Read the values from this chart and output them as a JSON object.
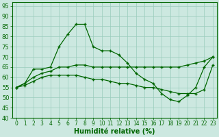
{
  "background_color": "#cce8e0",
  "grid_color": "#99ccbb",
  "line_color": "#006600",
  "xlabel": "Humidité relative (%)",
  "xlabel_fontsize": 7,
  "xlim": [
    -0.5,
    23.5
  ],
  "ylim": [
    40,
    97
  ],
  "yticks": [
    40,
    45,
    50,
    55,
    60,
    65,
    70,
    75,
    80,
    85,
    90,
    95
  ],
  "xticks": [
    0,
    1,
    2,
    3,
    4,
    5,
    6,
    7,
    8,
    9,
    10,
    11,
    12,
    13,
    14,
    15,
    16,
    17,
    18,
    19,
    20,
    21,
    22,
    23
  ],
  "series1_x": [
    0,
    1,
    2,
    3,
    4,
    5,
    6,
    7,
    8,
    9,
    10,
    11,
    12,
    13,
    14,
    15,
    16,
    17,
    18,
    19,
    20,
    21,
    22,
    23
  ],
  "series1_y": [
    55,
    57,
    64,
    64,
    65,
    75,
    81,
    86,
    86,
    75,
    73,
    73,
    71,
    67,
    62,
    59,
    57,
    52,
    49,
    48,
    51,
    55,
    65,
    70
  ],
  "series2_x": [
    0,
    1,
    2,
    3,
    4,
    5,
    6,
    7,
    8,
    9,
    10,
    11,
    12,
    13,
    14,
    15,
    16,
    17,
    18,
    19,
    20,
    21,
    22,
    23
  ],
  "series2_y": [
    55,
    57,
    60,
    62,
    63,
    65,
    65,
    66,
    66,
    65,
    65,
    65,
    65,
    65,
    65,
    65,
    65,
    65,
    65,
    65,
    66,
    67,
    68,
    70
  ],
  "series3_x": [
    0,
    1,
    2,
    3,
    4,
    5,
    6,
    7,
    8,
    9,
    10,
    11,
    12,
    13,
    14,
    15,
    16,
    17,
    18,
    19,
    20,
    21,
    22,
    23
  ],
  "series3_y": [
    55,
    56,
    58,
    60,
    61,
    61,
    61,
    61,
    60,
    59,
    59,
    58,
    57,
    57,
    56,
    55,
    55,
    54,
    53,
    52,
    52,
    52,
    54,
    66
  ]
}
